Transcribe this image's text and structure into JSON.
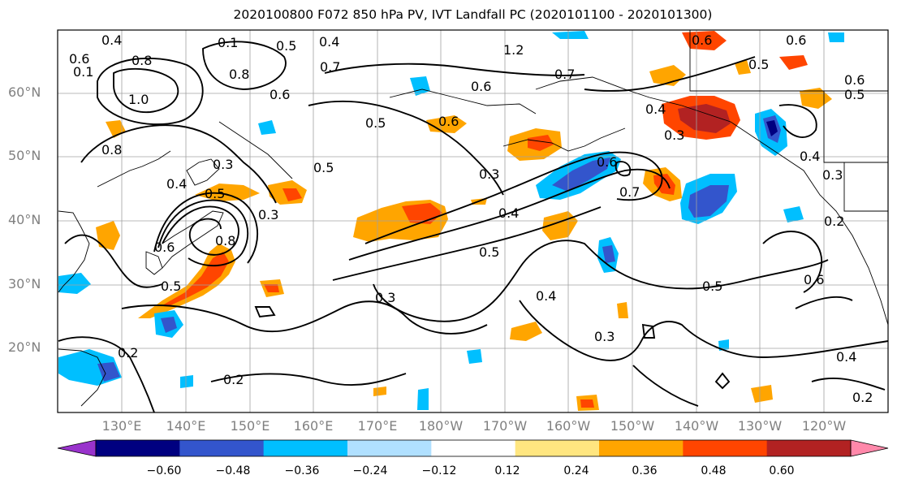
{
  "title": "2020100800 F072 850 hPa PV, IVT Landfall PC (2020101100 - 2020101300)",
  "lat_labels": [
    "60°N",
    "50°N",
    "40°N",
    "30°N",
    "20°N"
  ],
  "lon_labels": [
    "130°E",
    "140°E",
    "150°E",
    "160°E",
    "170°E",
    "180°W",
    "170°W",
    "160°W",
    "150°W",
    "140°W",
    "130°W",
    "120°W"
  ],
  "colorbar": {
    "colors": [
      "#9933cc",
      "#000080",
      "#3355cc",
      "#00bfff",
      "#b0e0ff",
      "#ffffff",
      "#ffe680",
      "#ffa500",
      "#ff4500",
      "#b22222",
      "#ff88aa"
    ],
    "ticks": [
      "−0.60",
      "−0.48",
      "−0.36",
      "−0.24",
      "−0.12",
      "0.12",
      "0.24",
      "0.36",
      "0.48",
      "0.60"
    ]
  },
  "contour_labels": [
    "0.4",
    "0.5",
    "0.4",
    "1.2",
    "0.7",
    "0.6",
    "0.6",
    "0.8",
    "0.1",
    "1.0",
    "0.8",
    "0.6",
    "0.7",
    "0.6",
    "0.5",
    "0.6",
    "0.4",
    "0.3",
    "0.3",
    "0.5",
    "0.8",
    "0.5",
    "0.3",
    "0.6",
    "0.4",
    "0.5",
    "0.7",
    "0.3",
    "0.6",
    "0.4",
    "0.3",
    "0.5",
    "0.3",
    "0.4",
    "0.6",
    "0.5",
    "0.2",
    "0.3",
    "0.4",
    "0.2",
    "0.2",
    "0.8",
    "0.6",
    "0.5",
    "0.1",
    "0.2",
    "0.5",
    "0.4",
    "0.6"
  ],
  "icons": {
    "map": "pv-map-icon"
  }
}
